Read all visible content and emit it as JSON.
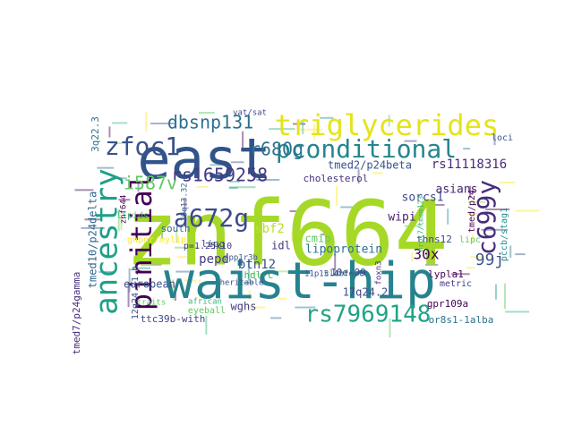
{
  "cloud": {
    "palette": [
      "#440154",
      "#3b528b",
      "#21918c",
      "#5ec962",
      "#fde725",
      "#31688e",
      "#35b779",
      "#90d743",
      "#443983",
      "#287c8e"
    ],
    "words": [
      {
        "text": "znf664",
        "color": "#a6d927",
        "weight": 10
      },
      {
        "text": "east",
        "color": "#31538b",
        "weight": 9
      },
      {
        "text": "waist-hip",
        "color": "#26828e",
        "weight": 9
      },
      {
        "text": "triglycerides",
        "color": "#e4e419",
        "weight": 7
      },
      {
        "text": "pconditional",
        "color": "#25858e",
        "weight": 6
      },
      {
        "text": "ancestry",
        "color": "#1fa088",
        "weight": 6
      },
      {
        "text": "pinitial",
        "color": "#440154",
        "weight": 6
      },
      {
        "text": "zfoc1",
        "color": "#3b528b",
        "weight": 5
      },
      {
        "text": "a672g",
        "color": "#3e4a89",
        "weight": 5
      },
      {
        "text": "rs7969148",
        "color": "#20a386",
        "weight": 5
      },
      {
        "text": "c699y",
        "color": "#472d7b",
        "weight": 5
      },
      {
        "text": "dbsnp131",
        "color": "#2d708e",
        "weight": 4
      },
      {
        "text": "r680g",
        "color": "#2c728e",
        "weight": 4
      },
      {
        "text": "rs1659258",
        "color": "#443a83",
        "weight": 4
      },
      {
        "text": "i587v",
        "color": "#5ec962",
        "weight": 4
      },
      {
        "text": "rs11118316",
        "color": "#472a7a",
        "weight": 3
      },
      {
        "text": "99j",
        "color": "#3b528b",
        "weight": 3
      },
      {
        "text": "30x",
        "color": "#440154",
        "weight": 3
      },
      {
        "text": "tmed2/p24beta",
        "color": "#3b528b",
        "weight": 2
      },
      {
        "text": "asians",
        "color": "#482475",
        "weight": 2
      },
      {
        "text": "cholesterol",
        "color": "#46327e",
        "weight": 2
      },
      {
        "text": "sorcs1",
        "color": "#3e4c8a",
        "weight": 2
      },
      {
        "text": "wipi",
        "color": "#481d6f",
        "weight": 2
      },
      {
        "text": "lipoprotein",
        "color": "#2c728e",
        "weight": 2
      },
      {
        "text": "pepd",
        "color": "#443983",
        "weight": 2
      },
      {
        "text": "btn12",
        "color": "#3b528b",
        "weight": 2
      },
      {
        "text": "idl",
        "color": "#46337e",
        "weight": 2
      },
      {
        "text": "sbf2",
        "color": "#b8de29",
        "weight": 2
      },
      {
        "text": "south",
        "color": "#31688e",
        "weight": 2
      },
      {
        "text": "lipg",
        "color": "#3e4a89",
        "weight": 2
      },
      {
        "text": "european",
        "color": "#3b528b",
        "weight": 2
      },
      {
        "text": "wghs",
        "color": "#443a83",
        "weight": 2
      },
      {
        "text": "10e-09",
        "color": "#404688",
        "weight": 2
      },
      {
        "text": "17q24.2",
        "color": "#3e4a89",
        "weight": 2
      },
      {
        "text": "gpr109a",
        "color": "#440154",
        "weight": 2
      },
      {
        "text": "or8s1-1alba",
        "color": "#2c728e",
        "weight": 2
      },
      {
        "text": "ttc39b-with",
        "color": "#404688",
        "weight": 2
      },
      {
        "text": "eyeball",
        "color": "#5ec962",
        "weight": 2
      },
      {
        "text": "tmed10/p24delta",
        "color": "#31688e",
        "weight": 2
      },
      {
        "text": "tmed7/p24gamma",
        "color": "#472d7b",
        "weight": 2
      },
      {
        "text": "12q24.31.b",
        "color": "#3b528b",
        "weight": 2
      },
      {
        "text": "3q22.3",
        "color": "#2c728e",
        "weight": 2
      },
      {
        "text": "thns12",
        "color": "#3e4a89",
        "weight": 2
      },
      {
        "text": "lypla1",
        "color": "#440154",
        "weight": 2
      },
      {
        "text": "p=1.25x10",
        "color": "#443983",
        "weight": 2
      },
      {
        "text": "loci",
        "color": "#3b528b",
        "weight": 2
      },
      {
        "text": "vat/sat",
        "color": "#3e4a89",
        "weight": 1
      },
      {
        "text": "traits",
        "color": "#5ec962",
        "weight": 1
      },
      {
        "text": "african",
        "color": "#35b779",
        "weight": 1
      },
      {
        "text": "heritable",
        "color": "#3b528b",
        "weight": 1
      },
      {
        "text": "hdl-c",
        "color": "#35b779",
        "weight": 1
      },
      {
        "text": "cmip",
        "color": "#5ec962",
        "weight": 1
      },
      {
        "text": "lipids",
        "color": "#35b779",
        "weight": 1
      },
      {
        "text": "gnpnr/mylip",
        "color": "#fde725",
        "weight": 1
      },
      {
        "text": "19q13.32",
        "color": "#31688e",
        "weight": 1
      },
      {
        "text": "11p15.4",
        "color": "#3b528b",
        "weight": 1
      },
      {
        "text": "clubfoot",
        "color": "#31688e",
        "weight": 1
      },
      {
        "text": "foxn3",
        "color": "#472d7b",
        "weight": 1
      },
      {
        "text": "ppp1r3b",
        "color": "#3b528b",
        "weight": 1
      },
      {
        "text": "mrpl7/tmem123",
        "color": "#35b779",
        "weight": 1
      },
      {
        "text": "tmed/p24",
        "color": "#440154",
        "weight": 1
      },
      {
        "text": "pccb/stag1",
        "color": "#21918c",
        "weight": 1
      },
      {
        "text": "znf644",
        "color": "#440154",
        "weight": 1
      },
      {
        "text": "lipc",
        "color": "#5ec962",
        "weight": 1
      },
      {
        "text": "metric",
        "color": "#443983",
        "weight": 1
      }
    ],
    "tiny_count": 90
  }
}
